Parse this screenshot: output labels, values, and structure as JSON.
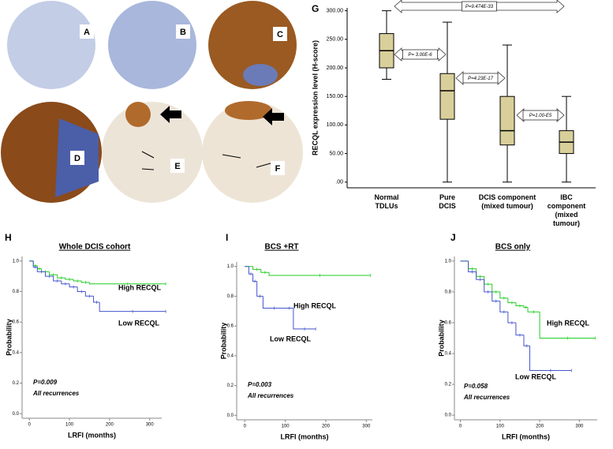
{
  "images": {
    "labels": [
      "A",
      "B",
      "C",
      "D",
      "E",
      "F"
    ]
  },
  "chart_data": [
    {
      "type": "box",
      "panel": "G",
      "ylabel": "RECQL expression level (H-score)",
      "categories": [
        "Normal\nTDLUs",
        "Pure\nDCIS",
        "DCIS component\n(mixed tumour)",
        "IBC component\n(mixed tumour)"
      ],
      "min": [
        180,
        0,
        0,
        0
      ],
      "q1": [
        200,
        110,
        65,
        50
      ],
      "median": [
        230,
        160,
        90,
        70
      ],
      "q3": [
        260,
        190,
        150,
        90
      ],
      "max": [
        300,
        280,
        240,
        150
      ],
      "color": "#d8cf9a",
      "ylim": [
        -10,
        305
      ],
      "yticks": [
        {
          "value": 0,
          "label": ".00"
        },
        {
          "value": 50,
          "label": "50.00"
        },
        {
          "value": 100,
          "label": "100.00"
        },
        {
          "value": 150,
          "label": "150.00"
        },
        {
          "value": 200,
          "label": "200.00"
        },
        {
          "value": 250,
          "label": "250.00"
        },
        {
          "value": 300,
          "label": "300.00"
        }
      ],
      "annotations": [
        "P=9.474E-33",
        "P= 3.00E-6",
        "P=4.23E-17",
        "P=1.00-E5"
      ]
    },
    {
      "type": "line",
      "drawstyle": "steps-post",
      "panel": "H",
      "title": "Whole DCIS cohort",
      "xlabel": "LRFI (months)",
      "ylabel": "Probability",
      "xlim": [
        -18,
        330
      ],
      "xticks": [
        0,
        100,
        200,
        300
      ],
      "ylim": [
        -0.03,
        1.03
      ],
      "yticks": [
        {
          "value": 0,
          "label": "0.0"
        },
        0.2,
        0.4,
        0.6,
        0.8,
        {
          "value": 1,
          "label": "1.0"
        }
      ],
      "series": [
        {
          "name": "High RECQL",
          "color": "#22cc22",
          "x": [
            0,
            10,
            20,
            30,
            50,
            70,
            90,
            110,
            130,
            150,
            340
          ],
          "y": [
            1,
            0.97,
            0.95,
            0.93,
            0.91,
            0.89,
            0.88,
            0.87,
            0.86,
            0.85,
            0.85
          ]
        },
        {
          "name": "Low RECQL",
          "color": "#4455cc",
          "x": [
            0,
            10,
            20,
            40,
            60,
            80,
            100,
            120,
            140,
            160,
            175,
            340
          ],
          "y": [
            1,
            0.96,
            0.93,
            0.9,
            0.87,
            0.85,
            0.83,
            0.8,
            0.77,
            0.73,
            0.67,
            0.67
          ]
        }
      ],
      "annotations": [
        "P=0.009",
        "All recurrences"
      ]
    },
    {
      "type": "line",
      "drawstyle": "steps-post",
      "panel": "I",
      "title": "BCS +RT",
      "xlabel": "LRFI (months)",
      "ylabel": "Probability",
      "xlim": [
        -20,
        315
      ],
      "xticks": [
        0,
        100,
        200,
        300
      ],
      "ylim": [
        -0.03,
        1.03
      ],
      "yticks": [
        {
          "value": 0,
          "label": "0.0"
        },
        0.2,
        0.4,
        0.6,
        0.8,
        {
          "value": 1,
          "label": "1.0"
        }
      ],
      "series": [
        {
          "name": "High RECQL",
          "color": "#22cc22",
          "x": [
            0,
            20,
            40,
            60,
            310
          ],
          "y": [
            1,
            0.98,
            0.96,
            0.94,
            0.94
          ]
        },
        {
          "name": "Low RECQL",
          "color": "#4455cc",
          "x": [
            0,
            10,
            20,
            30,
            45,
            100,
            120,
            175
          ],
          "y": [
            1,
            0.95,
            0.9,
            0.8,
            0.72,
            0.72,
            0.58,
            0.58
          ]
        }
      ],
      "annotations": [
        "P=0.003",
        "All recurrences"
      ]
    },
    {
      "type": "line",
      "drawstyle": "steps-post",
      "panel": "J",
      "title": "BCS only",
      "xlabel": "LRFI (months)",
      "ylabel": "Probability",
      "xlim": [
        -15,
        345
      ],
      "xticks": [
        0,
        100,
        200,
        300
      ],
      "ylim": [
        -0.03,
        1.03
      ],
      "yticks": [
        {
          "value": 0,
          "label": "0.0"
        },
        0.2,
        0.4,
        0.6,
        0.8,
        {
          "value": 1,
          "label": "1.0"
        }
      ],
      "series": [
        {
          "name": "High RECQL",
          "color": "#22cc22",
          "x": [
            0,
            20,
            40,
            60,
            80,
            100,
            120,
            140,
            160,
            170,
            200,
            340
          ],
          "y": [
            1,
            0.95,
            0.9,
            0.85,
            0.8,
            0.76,
            0.73,
            0.71,
            0.7,
            0.67,
            0.5,
            0.5
          ]
        },
        {
          "name": "Low RECQL",
          "color": "#4455cc",
          "x": [
            0,
            20,
            40,
            60,
            80,
            100,
            120,
            140,
            160,
            175,
            280
          ],
          "y": [
            1,
            0.93,
            0.88,
            0.8,
            0.74,
            0.67,
            0.6,
            0.52,
            0.45,
            0.29,
            0.29
          ]
        }
      ],
      "annotations": [
        "P=0.058",
        "All recurrences"
      ]
    }
  ]
}
